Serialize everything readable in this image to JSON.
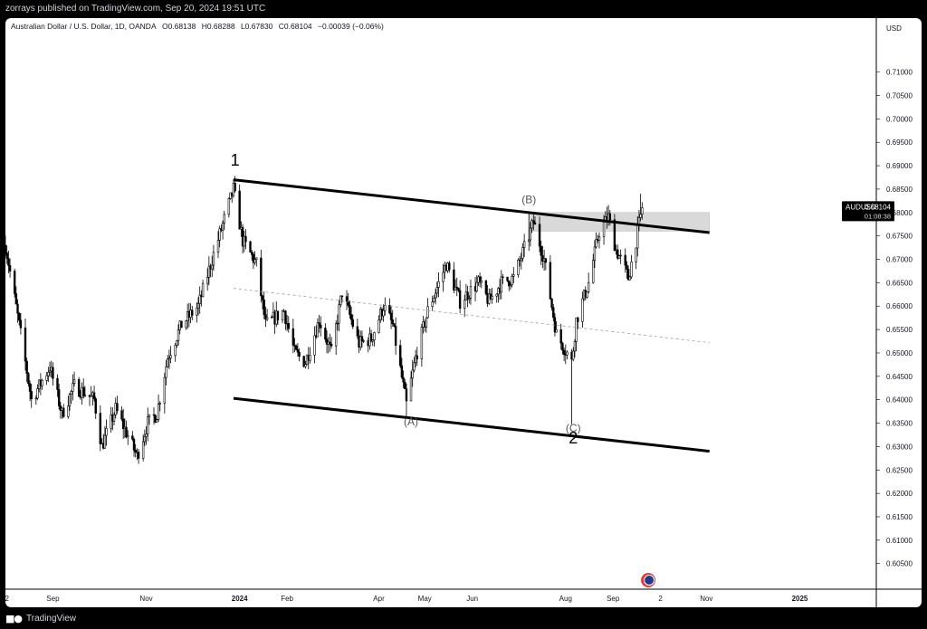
{
  "publisher_line": "zorrays published on TradingView.com, Sep 20, 2024 19:51 UTC",
  "header": {
    "symbol": "Australian Dollar / U.S. Dollar, 1D, OANDA",
    "open": "O0.68138",
    "high": "H0.68288",
    "low": "L0.67830",
    "close": "C0.68104",
    "change": "−0.00039 (−0.06%)"
  },
  "price_tag": {
    "symbol": "AUDUSD",
    "price": "0.68104",
    "countdown": "01:08:38",
    "value": 0.68104
  },
  "footer": {
    "brand": "TradingView",
    "logo_icon": "tradingview-logo-icon"
  },
  "flag_icon": "australia-flag-icon",
  "colors": {
    "background": "#ffffff",
    "candle": "#000000",
    "zone": "#d9d9d9",
    "frame": "#000000"
  },
  "chart_data": {
    "type": "candlestick",
    "symbol": "AUDUSD",
    "timeframe": "1D",
    "currency_label": "USD",
    "y_range": [
      0.6005,
      0.7165
    ],
    "y_ticks": [
      0.71,
      0.705,
      0.7,
      0.695,
      0.69,
      0.685,
      0.68,
      0.675,
      0.67,
      0.665,
      0.66,
      0.655,
      0.65,
      0.645,
      0.64,
      0.635,
      0.63,
      0.625,
      0.62,
      0.615,
      0.61,
      0.605
    ],
    "y_tick_labels": [
      "0.71000",
      "0.70500",
      "0.70000",
      "0.69500",
      "0.69000",
      "0.68500",
      "0.68000",
      "0.67500",
      "0.67000",
      "0.66500",
      "0.66000",
      "0.65500",
      "0.65000",
      "0.64500",
      "0.64000",
      "0.63500",
      "0.63000",
      "0.62500",
      "0.62000",
      "0.61500",
      "0.61000",
      "0.60500"
    ],
    "x_range": [
      "2023-08-01",
      "2025-02-20"
    ],
    "x_ticks": [
      {
        "label": "2",
        "date": "2023-08-02",
        "bold": false
      },
      {
        "label": "Sep",
        "date": "2023-09-01",
        "bold": false
      },
      {
        "label": "Nov",
        "date": "2023-11-01",
        "bold": false
      },
      {
        "label": "2024",
        "date": "2024-01-01",
        "bold": true
      },
      {
        "label": "Feb",
        "date": "2024-02-01",
        "bold": false
      },
      {
        "label": "Apr",
        "date": "2024-04-01",
        "bold": false
      },
      {
        "label": "May",
        "date": "2024-05-01",
        "bold": false
      },
      {
        "label": "Jun",
        "date": "2024-06-01",
        "bold": false
      },
      {
        "label": "Aug",
        "date": "2024-08-01",
        "bold": false
      },
      {
        "label": "Sep",
        "date": "2024-09-01",
        "bold": false
      },
      {
        "label": "2",
        "date": "2024-10-02",
        "bold": false
      },
      {
        "label": "Nov",
        "date": "2024-11-01",
        "bold": false
      },
      {
        "label": "2025",
        "date": "2025-01-01",
        "bold": true
      }
    ],
    "price_path_key_points": [
      [
        "2023-08-01",
        0.673
      ],
      [
        "2023-08-10",
        0.656
      ],
      [
        "2023-08-18",
        0.64
      ],
      [
        "2023-08-30",
        0.647
      ],
      [
        "2023-09-07",
        0.637
      ],
      [
        "2023-09-15",
        0.643
      ],
      [
        "2023-09-28",
        0.64
      ],
      [
        "2023-10-03",
        0.63
      ],
      [
        "2023-10-12",
        0.638
      ],
      [
        "2023-10-26",
        0.628
      ],
      [
        "2023-11-02",
        0.635
      ],
      [
        "2023-11-08",
        0.637
      ],
      [
        "2023-11-15",
        0.649
      ],
      [
        "2023-11-24",
        0.656
      ],
      [
        "2023-12-05",
        0.66
      ],
      [
        "2023-12-14",
        0.67
      ],
      [
        "2023-12-28",
        0.685
      ],
      [
        "2024-01-03",
        0.674
      ],
      [
        "2024-01-12",
        0.669
      ],
      [
        "2024-01-18",
        0.656
      ],
      [
        "2024-01-30",
        0.659
      ],
      [
        "2024-02-06",
        0.65
      ],
      [
        "2024-02-13",
        0.648
      ],
      [
        "2024-02-22",
        0.657
      ],
      [
        "2024-03-01",
        0.65
      ],
      [
        "2024-03-08",
        0.663
      ],
      [
        "2024-03-19",
        0.652
      ],
      [
        "2024-03-27",
        0.653
      ],
      [
        "2024-04-04",
        0.66
      ],
      [
        "2024-04-10",
        0.656
      ],
      [
        "2024-04-19",
        0.639
      ],
      [
        "2024-04-25",
        0.649
      ],
      [
        "2024-05-03",
        0.659
      ],
      [
        "2024-05-15",
        0.669
      ],
      [
        "2024-05-24",
        0.661
      ],
      [
        "2024-06-05",
        0.665
      ],
      [
        "2024-06-12",
        0.661
      ],
      [
        "2024-06-20",
        0.665
      ],
      [
        "2024-06-28",
        0.666
      ],
      [
        "2024-07-08",
        0.675
      ],
      [
        "2024-07-11",
        0.678
      ],
      [
        "2024-07-18",
        0.67
      ],
      [
        "2024-07-26",
        0.654
      ],
      [
        "2024-08-02",
        0.65
      ],
      [
        "2024-08-05",
        0.648
      ],
      [
        "2024-08-08",
        0.657
      ],
      [
        "2024-08-16",
        0.665
      ],
      [
        "2024-08-23",
        0.676
      ],
      [
        "2024-08-29",
        0.679
      ],
      [
        "2024-09-03",
        0.672
      ],
      [
        "2024-09-06",
        0.67
      ],
      [
        "2024-09-11",
        0.666
      ],
      [
        "2024-09-16",
        0.674
      ],
      [
        "2024-09-20",
        0.681
      ]
    ],
    "extreme_wicks": [
      {
        "date": "2024-04-19",
        "low": 0.636
      },
      {
        "date": "2024-08-05",
        "low": 0.6348
      },
      {
        "date": "2023-12-28",
        "high": 0.6871
      },
      {
        "date": "2024-07-08",
        "high": 0.6798
      },
      {
        "date": "2024-09-19",
        "high": 0.684
      }
    ],
    "channel": {
      "upper": {
        "start": [
          "2023-12-28",
          0.687
        ],
        "end": [
          "2024-11-03",
          0.6757
        ]
      },
      "lower": {
        "start": [
          "2023-12-28",
          0.6403
        ],
        "end": [
          "2024-11-03",
          0.629
        ]
      },
      "mid_dashed": {
        "start": [
          "2023-12-28",
          0.6638
        ],
        "end": [
          "2024-11-03",
          0.6522
        ]
      }
    },
    "resistance_zone": {
      "from": "2024-07-08",
      "to": "2024-11-03",
      "price_low": 0.676,
      "price_high": 0.68
    },
    "wave_labels": [
      {
        "text": "1",
        "date": "2023-12-29",
        "price": 0.69,
        "style": "large"
      },
      {
        "text": "(B)",
        "date": "2024-07-08",
        "price": 0.682,
        "style": "small"
      },
      {
        "text": "(A)",
        "date": "2024-04-22",
        "price": 0.6345,
        "style": "small"
      },
      {
        "text": "(C)",
        "date": "2024-08-06",
        "price": 0.6332,
        "style": "small"
      },
      {
        "text": "2",
        "date": "2024-08-06",
        "price": 0.6307,
        "style": "large"
      }
    ],
    "last_price": 0.68104
  }
}
